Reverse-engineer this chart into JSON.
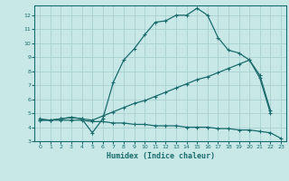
{
  "xlabel": "Humidex (Indice chaleur)",
  "bg_color": "#c8e8e8",
  "line_color": "#1a6b6b",
  "grid_color": "#a8d0d0",
  "xlim": [
    -0.5,
    23.5
  ],
  "ylim": [
    3,
    12.7
  ],
  "yticks": [
    3,
    4,
    5,
    6,
    7,
    8,
    9,
    10,
    11,
    12
  ],
  "xticks": [
    0,
    1,
    2,
    3,
    4,
    5,
    6,
    7,
    8,
    9,
    10,
    11,
    12,
    13,
    14,
    15,
    16,
    17,
    18,
    19,
    20,
    21,
    22,
    23
  ],
  "curve1_x": [
    0,
    1,
    2,
    3,
    4,
    5,
    6,
    7,
    8,
    9,
    10,
    11,
    12,
    13,
    14,
    15,
    16,
    17,
    18,
    19,
    20,
    21,
    22
  ],
  "curve1_y": [
    4.6,
    4.5,
    4.6,
    4.7,
    4.6,
    3.6,
    4.6,
    7.2,
    8.8,
    9.6,
    10.6,
    11.5,
    11.6,
    12.0,
    12.0,
    12.5,
    12.0,
    10.4,
    9.5,
    9.3,
    8.8,
    7.5,
    5.0
  ],
  "curve2_x": [
    0,
    1,
    2,
    3,
    4,
    5,
    6,
    7,
    8,
    9,
    10,
    11,
    12,
    13,
    14,
    15,
    16,
    17,
    18,
    19,
    20,
    21,
    22
  ],
  "curve2_y": [
    4.5,
    4.5,
    4.6,
    4.7,
    4.6,
    4.5,
    4.8,
    5.1,
    5.4,
    5.7,
    5.9,
    6.2,
    6.5,
    6.8,
    7.1,
    7.4,
    7.6,
    7.9,
    8.2,
    8.5,
    8.8,
    7.7,
    5.2
  ],
  "curve3_x": [
    0,
    1,
    2,
    3,
    4,
    5,
    6,
    7,
    8,
    9,
    10,
    11,
    12,
    13,
    14,
    15,
    16,
    17,
    18,
    19,
    20,
    21,
    22,
    23
  ],
  "curve3_y": [
    4.5,
    4.5,
    4.5,
    4.5,
    4.5,
    4.4,
    4.4,
    4.3,
    4.3,
    4.2,
    4.2,
    4.1,
    4.1,
    4.1,
    4.0,
    4.0,
    4.0,
    3.9,
    3.9,
    3.8,
    3.8,
    3.7,
    3.6,
    3.2
  ]
}
